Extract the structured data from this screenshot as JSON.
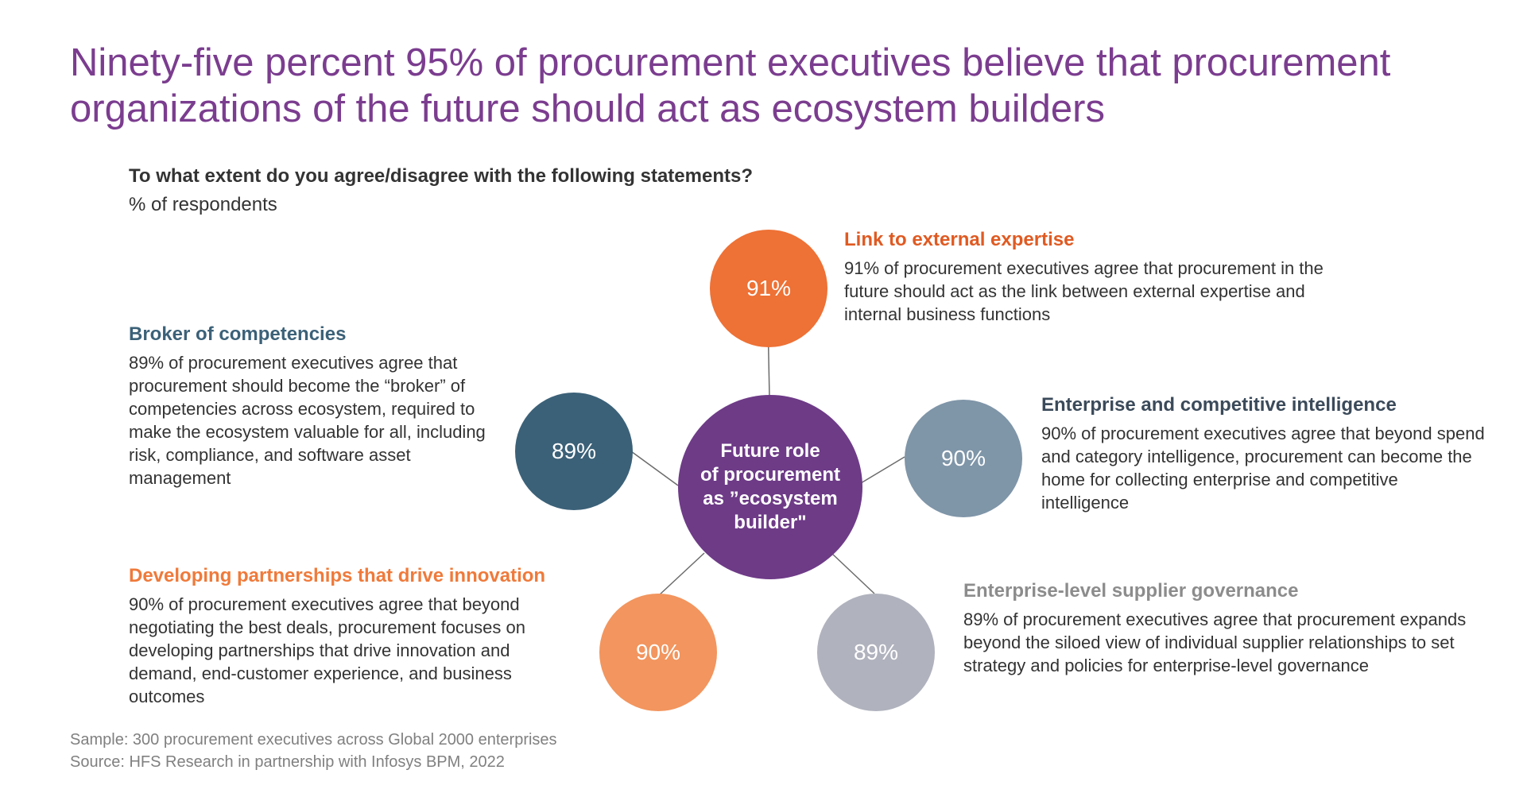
{
  "title": "Ninety-five percent 95% of procurement executives believe that procurement organizations of the future should act as ecosystem builders",
  "question": "To what extent do you agree/disagree with the following statements?",
  "unit": "% of respondents",
  "center": {
    "label": "Future role\nof procurement\nas ”ecosystem\nbuilder\"",
    "color": "#6e3b87"
  },
  "statements": [
    {
      "heading": "Link to external expertise",
      "percent": "91%",
      "value": 91,
      "color": "#ee7135",
      "heading_color": "#e05a22",
      "text": "91% of procurement executives agree that procurement in the future should act as the link between external expertise and internal business functions"
    },
    {
      "heading": "Enterprise and competitive intelligence",
      "percent": "90%",
      "value": 90,
      "color": "#7f95a8",
      "heading_color": "#3b4a5a",
      "text": "90% of procurement executives agree that beyond spend and category intelligence, procurement can become the home for collecting enterprise and competitive intelligence"
    },
    {
      "heading": "Enterprise-level supplier governance",
      "percent": "89%",
      "value": 89,
      "color": "#b0b2bd",
      "heading_color": "#8c8c8c",
      "text": "89% of procurement executives agree that procurement expands beyond the siloed view of individual supplier relationships to set strategy and policies for enterprise-level governance"
    },
    {
      "heading": "Developing partnerships that drive innovation",
      "percent": "90%",
      "value": 90,
      "color": "#f2955e",
      "heading_color": "#ef7a3a",
      "text": "90% of procurement executives agree that beyond negotiating the best deals, procurement focuses on developing partnerships that drive innovation and demand, end-customer experience, and business outcomes"
    },
    {
      "heading": "Broker of competencies",
      "percent": "89%",
      "value": 89,
      "color": "#3b6178",
      "heading_color": "#3b6178",
      "text": "89% of procurement executives agree that procurement should become the “broker” of competencies across ecosystem, required to make the ecosystem valuable for all, including risk, compliance, and software asset management"
    }
  ],
  "footnotes": {
    "sample": "Sample: 300 procurement executives across Global 2000 enterprises",
    "source": "Source: HFS Research in partnership with Infosys BPM, 2022"
  }
}
